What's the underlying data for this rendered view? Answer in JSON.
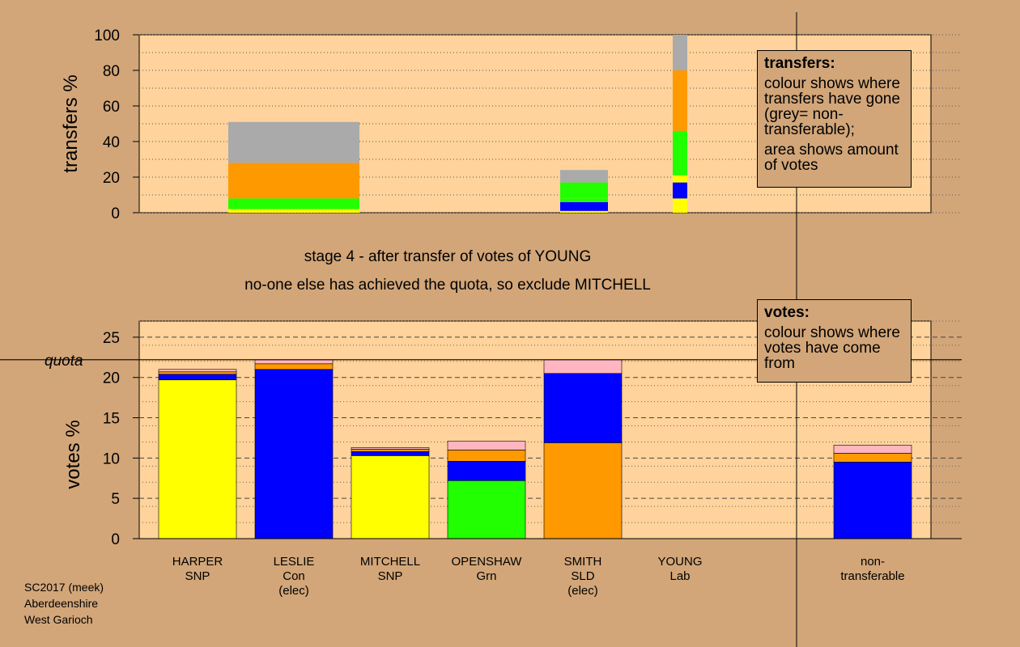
{
  "colors": {
    "background": "#d2a679",
    "panel": "#ffd39b",
    "SNP": "#ffff00",
    "Con": "#0000ff",
    "Grn": "#22ff00",
    "Lab": "#ff9900",
    "SLD": "#ff9900",
    "other": "#ffb6c1",
    "nontransferable": "#aaaaaa"
  },
  "chart_data": [
    {
      "type": "bar",
      "stacked": true,
      "ylabel": "transfers %",
      "ylim": [
        0,
        100
      ],
      "yticks": [
        0,
        20,
        40,
        60,
        80,
        100
      ],
      "grid": true,
      "bars": [
        {
          "slot": 1,
          "segments": [
            {
              "color": "#ffff00",
              "from": 0,
              "to": 2
            },
            {
              "color": "#22ff00",
              "from": 2,
              "to": 8
            },
            {
              "color": "#ff9900",
              "from": 8,
              "to": 28
            },
            {
              "color": "#aaaaaa",
              "from": 28,
              "to": 51
            }
          ]
        },
        {
          "slot": 4,
          "segments": [
            {
              "color": "#ffff00",
              "from": 0,
              "to": 1
            },
            {
              "color": "#0000ff",
              "from": 1,
              "to": 6
            },
            {
              "color": "#22ff00",
              "from": 6,
              "to": 8
            },
            {
              "color": "#22ff00",
              "from": 8,
              "to": 17
            },
            {
              "color": "#aaaaaa",
              "from": 17,
              "to": 24
            }
          ]
        },
        {
          "slot": 5,
          "segments": [
            {
              "color": "#ffff00",
              "from": 0,
              "to": 8
            },
            {
              "color": "#0000ff",
              "from": 8,
              "to": 17
            },
            {
              "color": "#ffff00",
              "from": 17,
              "to": 21
            },
            {
              "color": "#22ff00",
              "from": 21,
              "to": 46
            },
            {
              "color": "#ff9900",
              "from": 46,
              "to": 80
            },
            {
              "color": "#aaaaaa",
              "from": 80,
              "to": 100
            }
          ]
        }
      ]
    },
    {
      "type": "bar",
      "stacked": true,
      "ylabel": "votes %",
      "ylim": [
        0,
        27
      ],
      "yticks": [
        0,
        5,
        10,
        15,
        20,
        25
      ],
      "quota": 22.2,
      "quota_label": "quota",
      "grid": true,
      "categories": [
        {
          "line1": "HARPER",
          "line2": "SNP",
          "line3": ""
        },
        {
          "line1": "LESLIE",
          "line2": "Con",
          "line3": "(elec)"
        },
        {
          "line1": "MITCHELL",
          "line2": "SNP",
          "line3": ""
        },
        {
          "line1": "OPENSHAW",
          "line2": "Grn",
          "line3": ""
        },
        {
          "line1": "SMITH",
          "line2": "SLD",
          "line3": "(elec)"
        },
        {
          "line1": "YOUNG",
          "line2": "Lab",
          "line3": ""
        },
        {
          "line1": "non-",
          "line2": "transferable",
          "line3": ""
        }
      ],
      "stacks": [
        {
          "category": 0,
          "segments": [
            {
              "color": "#ffff00",
              "value": 19.7
            },
            {
              "color": "#0000ff",
              "value": 0.7
            },
            {
              "color": "#ff9900",
              "value": 0.3
            },
            {
              "color": "#ffb6c1",
              "value": 0.3
            }
          ]
        },
        {
          "category": 1,
          "segments": [
            {
              "color": "#0000ff",
              "value": 21.0
            },
            {
              "color": "#ff9900",
              "value": 0.7
            },
            {
              "color": "#ffb6c1",
              "value": 0.5
            }
          ]
        },
        {
          "category": 2,
          "segments": [
            {
              "color": "#ffff00",
              "value": 10.3
            },
            {
              "color": "#0000ff",
              "value": 0.5
            },
            {
              "color": "#ff9900",
              "value": 0.3
            },
            {
              "color": "#ffb6c1",
              "value": 0.2
            }
          ]
        },
        {
          "category": 3,
          "segments": [
            {
              "color": "#22ff00",
              "value": 7.2
            },
            {
              "color": "#0000ff",
              "value": 2.4
            },
            {
              "color": "#ff9900",
              "value": 1.4
            },
            {
              "color": "#ffb6c1",
              "value": 1.1
            }
          ]
        },
        {
          "category": 4,
          "segments": [
            {
              "color": "#ff9900",
              "value": 11.9
            },
            {
              "color": "#0000ff",
              "value": 8.6
            },
            {
              "color": "#ffb6c1",
              "value": 1.7
            }
          ]
        },
        {
          "category": 5,
          "segments": []
        },
        {
          "category": 6,
          "segments": [
            {
              "color": "#0000ff",
              "value": 9.5
            },
            {
              "color": "#ff9900",
              "value": 1.1
            },
            {
              "color": "#ffb6c1",
              "value": 1.0
            }
          ]
        }
      ]
    }
  ],
  "stage_text": "stage 4 - after transfer of votes of YOUNG",
  "action_text": "no-one else has achieved the quota, so exclude MITCHELL",
  "legend_transfers": {
    "title": "transfers:",
    "para1": "colour shows where transfers have gone (grey= non-transferable);",
    "para2": "area shows amount of votes"
  },
  "legend_votes": {
    "title": "votes:",
    "para1": "colour shows where votes have come from"
  },
  "footer": {
    "line1": "SC2017 (meek)",
    "line2": "Aberdeenshire",
    "line3": "West Garioch"
  }
}
